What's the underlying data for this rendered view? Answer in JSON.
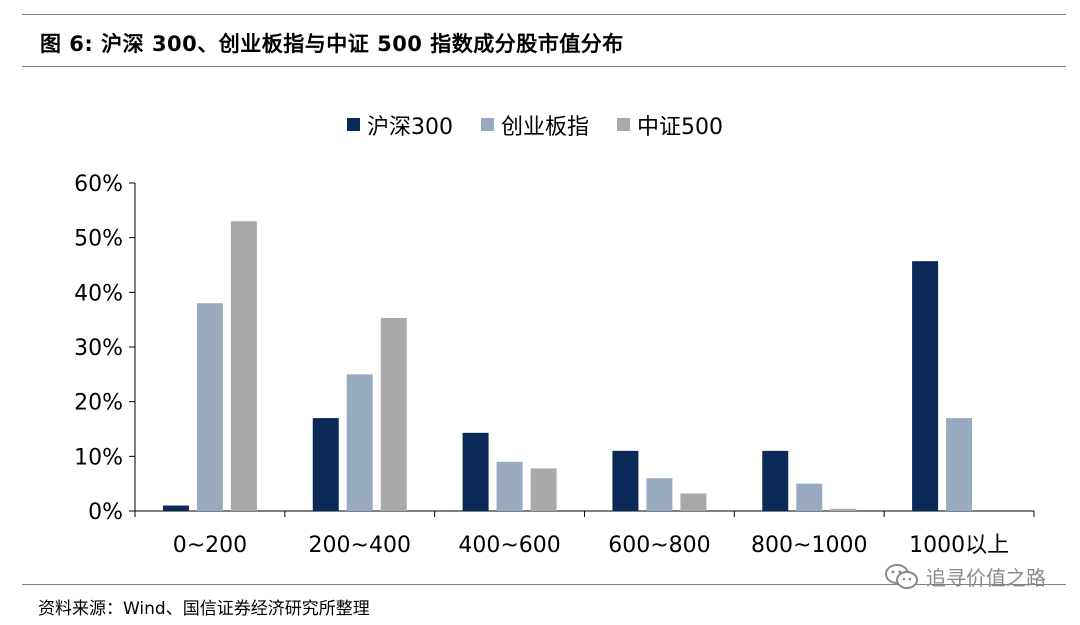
{
  "figure_title": "图  6:  沪深 300、创业板指与中证 500 指数成分股市值分布",
  "source": "资料来源：Wind、国信证券经济研究所整理",
  "watermark": "追寻价值之路",
  "colors": {
    "series": [
      "#0b2a57",
      "#98aabf",
      "#a9a9a9"
    ],
    "axis": "#000000",
    "rule": "#7f7f7f"
  },
  "icons": {
    "watermark": "wechat-icon"
  },
  "chart_data": {
    "type": "bar",
    "categories": [
      "0~200",
      "200~400",
      "400~600",
      "600~800",
      "800~1000",
      "1000以上"
    ],
    "series": [
      {
        "name": "沪深300",
        "values": [
          1,
          17,
          14.3,
          11,
          11,
          45.7
        ]
      },
      {
        "name": "创业板指",
        "values": [
          38,
          25,
          9,
          6,
          5,
          17
        ]
      },
      {
        "name": "中证500",
        "values": [
          53,
          35.3,
          7.8,
          3.2,
          0.4,
          0
        ]
      }
    ],
    "ylim": [
      0,
      60
    ],
    "yticks": [
      0,
      10,
      20,
      30,
      40,
      50,
      60
    ],
    "ytick_labels": [
      "0%",
      "10%",
      "20%",
      "30%",
      "40%",
      "50%",
      "60%"
    ],
    "legend_position": "top-center",
    "grid": false
  }
}
